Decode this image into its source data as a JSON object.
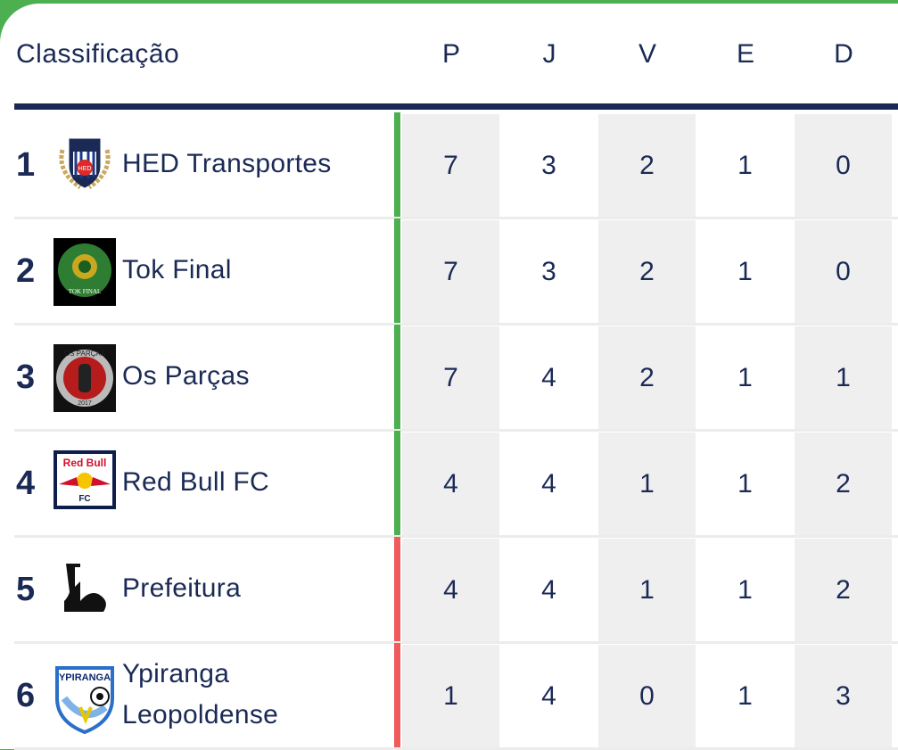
{
  "table": {
    "title": "Classificação",
    "columns": [
      "P",
      "J",
      "V",
      "E",
      "D"
    ],
    "zone_colors": {
      "promotion": "#4caf50",
      "relegation": "#f05a5a"
    },
    "rows": [
      {
        "pos": "1",
        "team": "HED Transportes",
        "logo": "hed-transportes-crest",
        "zone": "promotion",
        "stats": [
          "7",
          "3",
          "2",
          "1",
          "0"
        ]
      },
      {
        "pos": "2",
        "team": "Tok Final",
        "logo": "tok-final-crest",
        "zone": "promotion",
        "stats": [
          "7",
          "3",
          "2",
          "1",
          "0"
        ]
      },
      {
        "pos": "3",
        "team": "Os Parças",
        "logo": "os-parcas-crest",
        "zone": "promotion",
        "stats": [
          "7",
          "4",
          "2",
          "1",
          "1"
        ]
      },
      {
        "pos": "4",
        "team": "Red Bull FC",
        "logo": "red-bull-fc-crest",
        "zone": "promotion",
        "stats": [
          "4",
          "4",
          "1",
          "1",
          "2"
        ]
      },
      {
        "pos": "5",
        "team": "Prefeitura",
        "logo": "prefeitura-crest",
        "zone": "relegation",
        "stats": [
          "4",
          "4",
          "1",
          "1",
          "2"
        ]
      },
      {
        "pos": "6",
        "team": "Ypiranga Leopoldense",
        "team_lines": [
          "Ypiranga",
          "Leopoldense"
        ],
        "logo": "ypiranga-crest",
        "zone": "relegation",
        "stats": [
          "1",
          "4",
          "0",
          "1",
          "3"
        ]
      }
    ]
  }
}
